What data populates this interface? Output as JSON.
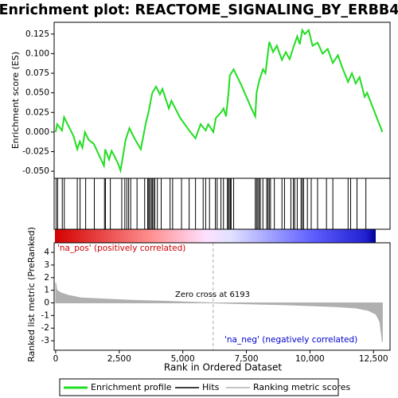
{
  "chart_data": [
    {
      "type": "line",
      "title": "Enrichment plot: REACTOME_SIGNALING_BY_ERBB4",
      "ylabel": "Enrichment score (ES)",
      "xlim": [
        -60,
        13150
      ],
      "ylim": [
        -0.059,
        0.14
      ],
      "yticks": [
        {
          "value": -0.05,
          "label": "-0.050"
        },
        -0.025,
        {
          "value": 0,
          "label": "0.000"
        },
        0.025,
        {
          "value": 0.05,
          "label": "0.050"
        },
        0.075,
        {
          "value": 0.1,
          "label": "0.100"
        },
        0.125
      ],
      "x": [
        0,
        60,
        250,
        330,
        700,
        850,
        950,
        1050,
        1150,
        1300,
        1500,
        1900,
        1950,
        2100,
        2200,
        2300,
        2450,
        2550,
        2650,
        2750,
        2900,
        3100,
        3350,
        3550,
        3650,
        3800,
        3950,
        4100,
        4200,
        4450,
        4550,
        4900,
        5300,
        5500,
        5700,
        5900,
        6000,
        6200,
        6300,
        6500,
        6600,
        6700,
        6800,
        6850,
        7000,
        7300,
        7700,
        7850,
        7900,
        8000,
        8150,
        8250,
        8400,
        8550,
        8700,
        8900,
        9050,
        9200,
        9350,
        9500,
        9600,
        9700,
        9800,
        9950,
        10100,
        10300,
        10500,
        10700,
        10900,
        11100,
        11300,
        11500,
        11650,
        11800,
        11950,
        12150,
        12250,
        12850
      ],
      "series": [
        {
          "name": "Enrichment profile",
          "color": "#22dd22",
          "values": [
            0,
            0.01,
            0.002,
            0.019,
            -0.005,
            -0.022,
            -0.012,
            -0.02,
            0,
            -0.01,
            -0.015,
            -0.043,
            -0.022,
            -0.035,
            -0.024,
            -0.03,
            -0.04,
            -0.049,
            -0.03,
            -0.01,
            0.005,
            -0.008,
            -0.022,
            0.012,
            0.025,
            0.05,
            0.058,
            0.048,
            0.055,
            0.03,
            0.04,
            0.018,
            0,
            -0.008,
            0.01,
            0.002,
            0.01,
            0,
            0.018,
            0.025,
            0.03,
            0.02,
            0.05,
            0.072,
            0.08,
            0.06,
            0.03,
            0.02,
            0.05,
            0.065,
            0.08,
            0.075,
            0.115,
            0.102,
            0.11,
            0.092,
            0.102,
            0.093,
            0.108,
            0.122,
            0.112,
            0.13,
            0.125,
            0.13,
            0.11,
            0.114,
            0.1,
            0.106,
            0.088,
            0.098,
            0.08,
            0.064,
            0.075,
            0.062,
            0.07,
            0.045,
            0.05,
            0
          ]
        }
      ]
    },
    {
      "type": "hits",
      "xlim": [
        -60,
        13150
      ],
      "series": [
        {
          "name": "Hits",
          "color": "#000000",
          "x": [
            20,
            80,
            260,
            340,
            850,
            960,
            1180,
            1520,
            1920,
            1960,
            2150,
            2600,
            2720,
            2800,
            2870,
            2950,
            3200,
            3500,
            3620,
            3660,
            3700,
            3760,
            3800,
            3850,
            3900,
            4000,
            4150,
            4500,
            4600,
            4950,
            5250,
            5500,
            5800,
            5900,
            6050,
            6280,
            6350,
            6500,
            6600,
            6750,
            6800,
            6820,
            6870,
            6900,
            7000,
            7850,
            7900,
            7950,
            8000,
            8050,
            8150,
            8300,
            8350,
            8400,
            8450,
            8600,
            8900,
            9000,
            9250,
            9350,
            9400,
            9500,
            9650,
            9700,
            9750,
            9900,
            10050,
            10300,
            10650,
            10900,
            11500,
            11600,
            11850,
            12200
          ]
        }
      ]
    },
    {
      "type": "area",
      "ylabel": "Ranked list metric (PreRanked)",
      "xlabel": "Rank in Ordered Dataset",
      "xlim": [
        -60,
        13150
      ],
      "ylim": [
        -3.75,
        4.76
      ],
      "xticks": [
        0,
        {
          "value": 2500,
          "label": "2,500"
        },
        {
          "value": 5000,
          "label": "5,000"
        },
        {
          "value": 7500,
          "label": "7,500"
        },
        {
          "value": 10000,
          "label": "10,000"
        },
        {
          "value": 12500,
          "label": "12,500"
        }
      ],
      "yticks": [
        -3,
        -2,
        -1,
        0,
        1,
        2,
        3,
        4
      ],
      "x": [
        0,
        50,
        200,
        500,
        1000,
        2000,
        3000,
        4000,
        5000,
        6193,
        7000,
        8000,
        9000,
        10000,
        11000,
        11800,
        12300,
        12600,
        12750,
        12850
      ],
      "series": [
        {
          "name": "Ranking metric scores",
          "color": "#b0b0b0",
          "values": [
            1.6,
            1.0,
            0.8,
            0.6,
            0.4,
            0.3,
            0.2,
            0.15,
            0.08,
            0,
            -0.05,
            -0.1,
            -0.15,
            -0.22,
            -0.3,
            -0.4,
            -0.6,
            -0.9,
            -1.5,
            -3.1
          ]
        }
      ],
      "zero_cross": 6193,
      "zero_cross_label": "Zero cross at 6193",
      "pos_label": "'na_pos' (positively correlated)",
      "neg_label": "'na_neg' (negatively correlated)"
    }
  ]
}
